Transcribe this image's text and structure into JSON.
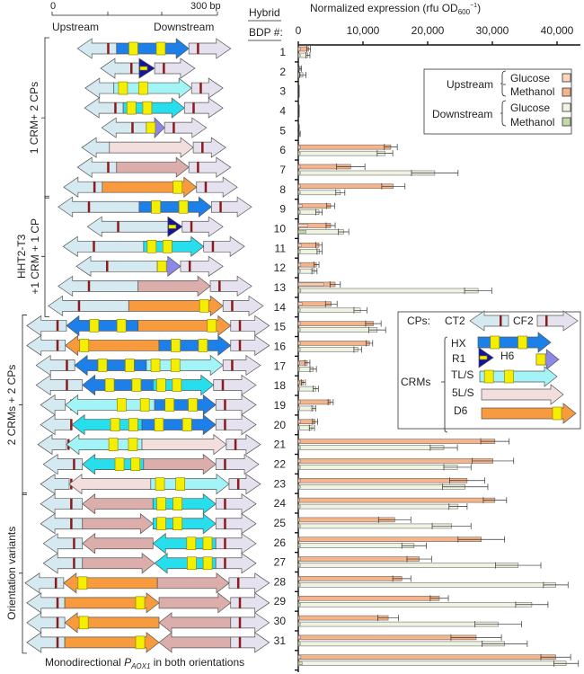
{
  "scale": {
    "zero": "0",
    "max": "300 bp",
    "upstream": "Upstream",
    "downstream": "Downstream"
  },
  "header": {
    "hybrid": "Hybrid",
    "bdp": "BDP #:"
  },
  "groups": [
    {
      "label": "1 CRM+ 2 CPs",
      "rows": [
        1,
        8
      ]
    },
    {
      "label": "HHT2-T3",
      "label2": "+1 CRM + 1 CP",
      "rows": [
        9,
        14
      ]
    },
    {
      "label": "2 CRMs + 2 CPs",
      "rows": [
        15,
        23
      ]
    },
    {
      "label": "Orientation variants",
      "rows": [
        24,
        31
      ]
    }
  ],
  "caption": {
    "pre": "Monodirectional ",
    "p": "P",
    "sub": "AOX1",
    "post": " in both orientations"
  },
  "colors": {
    "CT2": "#d5e9f1",
    "CF2": "#e6e1ef",
    "HX": "#1c80e8",
    "R1": "#14149c",
    "TL": "#a2f4f6",
    "TLb": "#27dfec",
    "H6": "#8c88e8",
    "5L": "#f3dede",
    "5Ld": "#dcaeab",
    "D6": "#f89b3e",
    "box": "#f4ee00",
    "cpbar": "#8b1a1a",
    "up_glucose": "#fbd6bd",
    "up_methanol": "#f5b48a",
    "down_glucose": "#eef3e2",
    "down_methanol": "#c5d9a8"
  },
  "constructs": [
    [
      [
        "CT2",
        "<",
        46,
        117
      ],
      [
        "HX",
        ">",
        117,
        248
      ],
      [
        "CF2",
        ">",
        248,
        324
      ]
    ],
    [
      [
        "CT2",
        "<",
        88,
        158
      ],
      [
        "R1",
        ">",
        158,
        186
      ],
      [
        "CF2",
        ">",
        186,
        259
      ]
    ],
    [
      [
        "CT2",
        "<",
        60,
        112
      ],
      [
        "TL",
        ">",
        112,
        253
      ],
      [
        "CF2",
        ">",
        253,
        310
      ]
    ],
    [
      [
        "CT2",
        "<",
        59,
        129
      ],
      [
        "TLb",
        ">",
        129,
        240
      ],
      [
        "CF2",
        ">",
        240,
        310
      ]
    ],
    [
      [
        "CT2",
        "<",
        90,
        171
      ],
      [
        "H6",
        ">",
        171,
        204
      ],
      [
        "CF2",
        ">",
        204,
        280
      ]
    ],
    [
      [
        "CT2",
        "<",
        54,
        104
      ],
      [
        "5L",
        ">",
        104,
        256
      ],
      [
        "CF2",
        ">",
        256,
        315
      ]
    ],
    [
      [
        "CT2",
        "<",
        46,
        117
      ],
      [
        "5Ld",
        ">",
        117,
        248
      ],
      [
        "CF2",
        ">",
        248,
        324
      ]
    ],
    [
      [
        "CT2",
        "<",
        21,
        91
      ],
      [
        "D6",
        ">",
        91,
        262
      ],
      [
        "CF2",
        ">",
        262,
        336
      ]
    ],
    [
      [
        "CT2",
        "<",
        11,
        158
      ],
      [
        "HX",
        ">",
        158,
        289
      ],
      [
        "CF2",
        ">",
        289,
        362
      ]
    ],
    [
      [
        "CT2",
        "<",
        64,
        210
      ],
      [
        "R1",
        ">",
        210,
        236
      ],
      [
        "CF2",
        ">",
        236,
        310
      ]
    ],
    [
      [
        "CT2",
        "<",
        20,
        166
      ],
      [
        "TLb",
        ">",
        166,
        275
      ],
      [
        "CF2",
        ">",
        275,
        349
      ]
    ],
    [
      [
        "CT2",
        "<",
        44,
        191
      ],
      [
        "H6",
        ">",
        191,
        233
      ],
      [
        "CF2",
        ">",
        233,
        310
      ]
    ],
    [
      [
        "CT2",
        "<",
        11,
        156
      ],
      [
        "5Ld",
        ">",
        156,
        287
      ],
      [
        "CF2",
        ">",
        287,
        362
      ]
    ],
    [
      [
        "CT2",
        "<",
        -7,
        139
      ],
      [
        "D6",
        ">",
        139,
        310
      ],
      [
        "CF2",
        ">",
        310,
        383
      ]
    ],
    [
      [
        "CT2",
        "<",
        -46,
        26
      ],
      [
        "HX",
        "<",
        26,
        156
      ],
      [
        "D6",
        ">",
        156,
        324
      ],
      [
        "CF2",
        ">",
        324,
        394
      ]
    ],
    [
      [
        "CT2",
        "<",
        -46,
        24
      ],
      [
        "D6",
        "<",
        24,
        194
      ],
      [
        "HX",
        ">",
        194,
        324
      ],
      [
        "CF2",
        ">",
        324,
        394
      ]
    ],
    [
      [
        "CT2",
        "<",
        -29,
        41
      ],
      [
        "HX",
        "<",
        41,
        171
      ],
      [
        "TL",
        ">",
        171,
        310
      ],
      [
        "CF2",
        ">",
        310,
        378
      ]
    ],
    [
      [
        "CT2",
        "<",
        -29,
        55
      ],
      [
        "HX",
        "<",
        55,
        183
      ],
      [
        "TLb",
        ">",
        183,
        293
      ],
      [
        "CF2",
        ">",
        293,
        370
      ]
    ],
    [
      [
        "CT2",
        "<",
        -21,
        24
      ],
      [
        "TL",
        "<",
        24,
        186
      ],
      [
        "HX",
        ">",
        186,
        297
      ],
      [
        "CF2",
        ">",
        297,
        370
      ]
    ],
    [
      [
        "CT2",
        "<",
        -21,
        36
      ],
      [
        "TLb",
        "<",
        36,
        163
      ],
      [
        "HX",
        ">",
        163,
        297
      ],
      [
        "CF2",
        ">",
        297,
        370
      ]
    ],
    [
      [
        "CT2",
        "<",
        -26,
        26
      ],
      [
        "TL",
        "<",
        26,
        163
      ],
      [
        "5L",
        ">",
        163,
        316
      ],
      [
        "CF2",
        ">",
        316,
        378
      ]
    ],
    [
      [
        "CT2",
        "<",
        -16,
        55
      ],
      [
        "TLb",
        "<",
        55,
        166
      ],
      [
        "5Ld",
        ">",
        166,
        297
      ],
      [
        "CF2",
        ">",
        297,
        375
      ]
    ],
    [
      [
        "CT2",
        "<",
        -21,
        31
      ],
      [
        "5L",
        "<",
        31,
        179
      ],
      [
        "TL",
        ">",
        179,
        321
      ],
      [
        "CF2",
        ">",
        321,
        378
      ]
    ],
    [
      [
        "CT2",
        "<",
        -21,
        55
      ],
      [
        "5Ld",
        "<",
        55,
        183
      ],
      [
        "TLb",
        ">",
        183,
        297
      ],
      [
        "CF2",
        ">",
        297,
        370
      ]
    ],
    [
      [
        "CT2",
        "<",
        -21,
        55
      ],
      [
        "5Ld",
        ">",
        55,
        183
      ],
      [
        "TLb",
        ">",
        183,
        297
      ],
      [
        "CF2",
        ">",
        297,
        370
      ]
    ],
    [
      [
        "CT2",
        "<",
        -16,
        55
      ],
      [
        "5Ld",
        "<",
        55,
        183
      ],
      [
        "TLb",
        "<",
        183,
        297
      ],
      [
        "CF2",
        ">",
        297,
        370
      ]
    ],
    [
      [
        "CT2",
        "<",
        -16,
        55
      ],
      [
        "5Ld",
        ">",
        55,
        186
      ],
      [
        "TLb",
        "<",
        186,
        297
      ],
      [
        "CF2",
        ">",
        297,
        370
      ]
    ],
    [
      [
        "CT2",
        "<",
        -49,
        21
      ],
      [
        "D6",
        "<",
        21,
        191
      ],
      [
        "5Ld",
        ">",
        191,
        321
      ],
      [
        "CF2",
        ">",
        321,
        394
      ]
    ],
    [
      [
        "CT2",
        "<",
        -46,
        23
      ],
      [
        "D6",
        ">",
        23,
        194
      ],
      [
        "5Ld",
        ">",
        194,
        324
      ],
      [
        "CF2",
        ">",
        324,
        394
      ]
    ],
    [
      [
        "CT2",
        "<",
        -46,
        23
      ],
      [
        "D6",
        "<",
        23,
        194
      ],
      [
        "5Ld",
        "<",
        194,
        324
      ],
      [
        "CF2",
        ">",
        324,
        394
      ]
    ],
    [
      [
        "CT2",
        "<",
        -46,
        23
      ],
      [
        "D6",
        ">",
        23,
        194
      ],
      [
        "5Ld",
        "<",
        194,
        324
      ],
      [
        "CF2",
        ">",
        324,
        394
      ]
    ]
  ],
  "legend1": {
    "upstream": "Upstream",
    "downstream": "Downstream",
    "glucose": "Glucose",
    "methanol": "Methanol"
  },
  "legend2": {
    "cps": "CPs:",
    "ct2": "CT2",
    "cf2": "CF2",
    "crms": "CRMs",
    "hx": "HX",
    "r1": "R1",
    "h6": "H6",
    "tls": "TL/S",
    "5ls": "5L/S",
    "d6": "D6"
  },
  "chart_data": {
    "type": "bar",
    "orientation": "horizontal",
    "title": "Normalized expression (rfu OD600⁻¹)",
    "xlabel_main": "Normalized expression (rfu OD",
    "xlabel_sub": "600",
    "xlabel_sup": "−1",
    "xlabel_end": ")",
    "xlim": [
      0,
      44000
    ],
    "xticks": [
      0,
      10000,
      20000,
      30000,
      40000
    ],
    "xtick_labels": [
      "0",
      "10,000",
      "20,000",
      "30,000",
      "40,000"
    ],
    "categories": [
      "1",
      "2",
      "3",
      "4",
      "5",
      "6",
      "7",
      "8",
      "9",
      "10",
      "11",
      "12",
      "13",
      "14",
      "15",
      "16",
      "17",
      "18",
      "19",
      "20",
      "21",
      "22",
      "23",
      "24",
      "25",
      "26",
      "27",
      "28",
      "29",
      "30",
      "31",
      ""
    ],
    "series": [
      {
        "name": "Upstream Glucose",
        "values": [
          300,
          200,
          50,
          50,
          50,
          300,
          300,
          300,
          600,
          1500,
          500,
          400,
          4000,
          600,
          300,
          300,
          200,
          200,
          300,
          300,
          300,
          300,
          300,
          200,
          200,
          200,
          300,
          300,
          200,
          200,
          300,
          400
        ]
      },
      {
        "name": "Upstream Methanol",
        "values": [
          1600,
          300,
          100,
          100,
          100,
          14300,
          8100,
          14700,
          5000,
          5000,
          3200,
          2800,
          5700,
          5100,
          11600,
          11000,
          1400,
          800,
          5000,
          2600,
          30400,
          30100,
          26100,
          30400,
          14900,
          28300,
          18700,
          16000,
          21800,
          13900,
          27500,
          39800
        ],
        "errors": [
          300,
          200,
          50,
          50,
          50,
          1000,
          2200,
          1800,
          600,
          700,
          500,
          400,
          800,
          900,
          1200,
          500,
          400,
          300,
          400,
          400,
          2200,
          3200,
          2700,
          1800,
          2500,
          3600,
          1900,
          1400,
          1400,
          1600,
          3900,
          2300
        ]
      },
      {
        "name": "Downstream Glucose",
        "values": [
          300,
          300,
          50,
          50,
          50,
          300,
          300,
          300,
          300,
          1200,
          300,
          300,
          400,
          300,
          300,
          300,
          200,
          200,
          200,
          200,
          300,
          300,
          300,
          300,
          300,
          300,
          300,
          300,
          300,
          300,
          300,
          600
        ]
      },
      {
        "name": "Downstream Methanol",
        "values": [
          1500,
          700,
          100,
          100,
          200,
          13400,
          21100,
          6500,
          3200,
          7000,
          3300,
          2500,
          27800,
          9600,
          12200,
          9200,
          2300,
          2700,
          2400,
          2100,
          22500,
          24600,
          25800,
          24700,
          23700,
          17900,
          34000,
          39800,
          36100,
          30900,
          31900,
          41400
        ],
        "errors": [
          300,
          500,
          50,
          50,
          100,
          1200,
          3600,
          700,
          500,
          800,
          400,
          400,
          2100,
          1000,
          1300,
          600,
          500,
          400,
          300,
          400,
          2100,
          2100,
          3500,
          1400,
          3000,
          1900,
          3500,
          1900,
          2500,
          3600,
          3500,
          1900
        ]
      }
    ],
    "legend": "top-right",
    "grid": false
  }
}
